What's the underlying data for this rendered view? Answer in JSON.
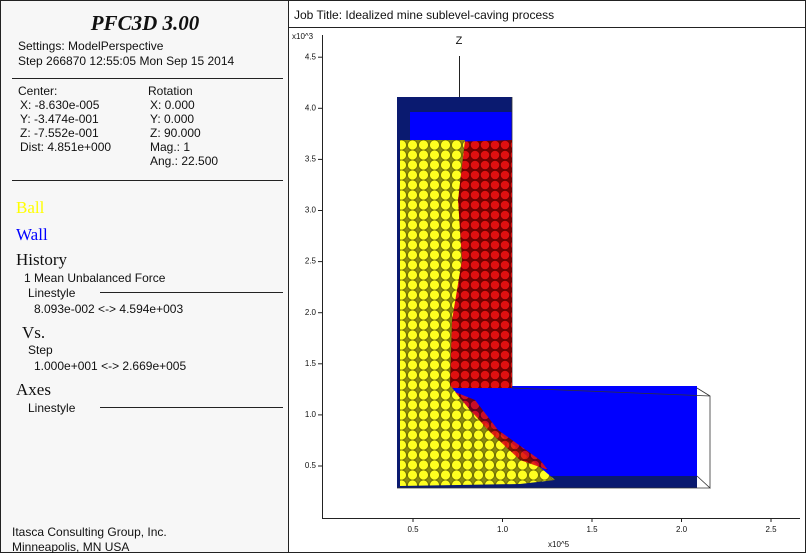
{
  "header": {
    "title": "PFC3D 3.00",
    "settings": "Settings:  ModelPerspective",
    "step": "Step 266870  12:55:05 Mon Sep 15 2014"
  },
  "view": {
    "center_label": "Center:",
    "center": [
      "X: -8.630e-005",
      "Y: -3.474e-001",
      "Z: -7.552e-001",
      "Dist: 4.851e+000"
    ],
    "rotation_label": "Rotation",
    "rotation": [
      "X:  0.000",
      "Y:  0.000",
      "Z:  90.000",
      "Mag.:        1",
      "Ang.:  22.500"
    ]
  },
  "legend": {
    "ball": "Ball",
    "wall": "Wall"
  },
  "history": {
    "title": "History",
    "item": "1 Mean Unbalanced Force",
    "linestyle": "Linestyle",
    "range": "8.093e-002 <-> 4.594e+003",
    "vs": "Vs.",
    "vs_item": "Step",
    "vs_range": "1.000e+001 <->  2.669e+005"
  },
  "axes": {
    "title": "Axes",
    "linestyle": "Linestyle"
  },
  "footer": [
    "Itasca Consulting Group, Inc.",
    "Minneapolis, MN  USA"
  ],
  "plot": {
    "job_title": "Job Title: Idealized mine sublevel-caving process",
    "y_exponent": "x10^3",
    "x_exponent": "x10^5",
    "axis_label": "Z",
    "yticks": [
      "0.5",
      "1.0",
      "1.5",
      "2.0",
      "2.5",
      "3.0",
      "3.5",
      "4.0",
      "4.5"
    ],
    "xticks": [
      "0.5",
      "1.0",
      "1.5",
      "2.0",
      "2.5"
    ]
  }
}
